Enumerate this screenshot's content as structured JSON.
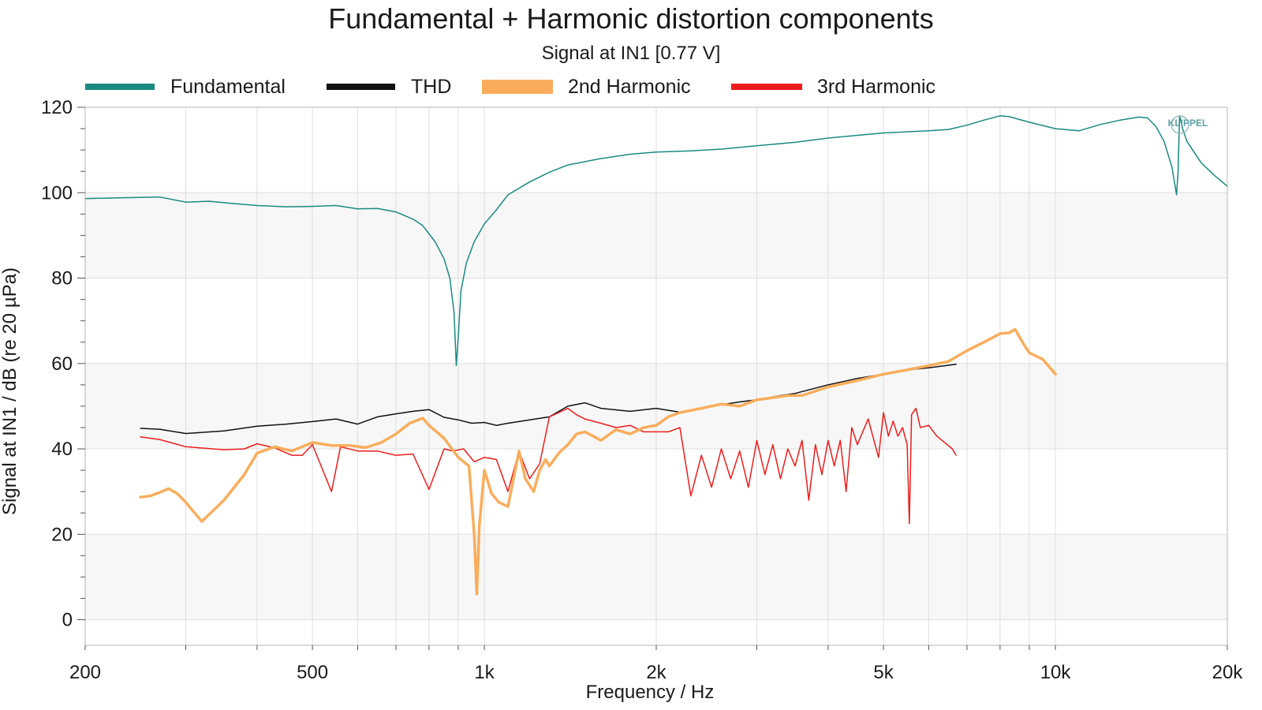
{
  "chart_data": {
    "type": "line",
    "title": "Fundamental + Harmonic distortion components",
    "subtitle": "Signal at IN1 [0.77 V]",
    "xlabel": "Frequency / Hz",
    "ylabel": "Signal at IN1 / dB (re 20 µPa)",
    "xscale": "log",
    "xlim": [
      200,
      20000
    ],
    "ylim": [
      -6,
      120
    ],
    "x_ticks": [
      {
        "value": 200,
        "label": "200"
      },
      {
        "value": 500,
        "label": "500"
      },
      {
        "value": 1000,
        "label": "1k"
      },
      {
        "value": 2000,
        "label": "2k"
      },
      {
        "value": 5000,
        "label": "5k"
      },
      {
        "value": 10000,
        "label": "10k"
      },
      {
        "value": 20000,
        "label": "20k"
      }
    ],
    "y_ticks": [
      0,
      20,
      40,
      60,
      80,
      100,
      120
    ],
    "grid": true,
    "legend_position": "top",
    "logo": "KLIPPEL",
    "series": [
      {
        "name": "Fundamental",
        "color": "#1a8a80",
        "width": 1.5,
        "x": [
          200,
          230,
          270,
          300,
          330,
          360,
          400,
          450,
          500,
          550,
          600,
          650,
          700,
          750,
          780,
          820,
          850,
          870,
          885,
          893,
          900,
          910,
          930,
          960,
          1000,
          1050,
          1100,
          1200,
          1300,
          1400,
          1600,
          1800,
          2000,
          2300,
          2600,
          3000,
          3500,
          4000,
          5000,
          6000,
          6500,
          7000,
          7500,
          8000,
          8300,
          9000,
          10000,
          11000,
          12000,
          13000,
          14000,
          14500,
          15000,
          15500,
          16000,
          16300,
          16400,
          16500,
          16700,
          17000,
          18000,
          19000,
          20000
        ],
        "y": [
          98.6,
          98.8,
          99.0,
          97.8,
          98.0,
          97.5,
          97.0,
          96.7,
          96.8,
          97.0,
          96.2,
          96.3,
          95.5,
          93.8,
          92.3,
          88.5,
          84.5,
          80.0,
          72.0,
          59.5,
          66.0,
          77.0,
          83.5,
          88.5,
          92.7,
          96.0,
          99.5,
          102.5,
          104.8,
          106.5,
          108.0,
          109.0,
          109.5,
          109.8,
          110.2,
          111.0,
          111.8,
          112.8,
          114.0,
          114.5,
          114.8,
          115.8,
          117.0,
          118.0,
          117.8,
          116.5,
          115.0,
          114.5,
          116.0,
          117.0,
          117.7,
          117.5,
          115.5,
          112.0,
          106.0,
          99.5,
          105.0,
          118.0,
          115.0,
          112.0,
          107.0,
          104.0,
          101.5
        ]
      },
      {
        "name": "THD",
        "color": "#111111",
        "width": 1.5,
        "x": [
          250,
          270,
          300,
          350,
          400,
          450,
          500,
          550,
          600,
          650,
          700,
          750,
          800,
          850,
          900,
          950,
          1000,
          1050,
          1100,
          1200,
          1300,
          1400,
          1500,
          1600,
          1800,
          2000,
          2200,
          2500,
          2800,
          3000,
          3300,
          3500,
          4000,
          4500,
          5000,
          5500,
          6000,
          6700
        ],
        "y": [
          44.8,
          44.6,
          43.6,
          44.2,
          45.3,
          45.8,
          46.4,
          47.0,
          45.8,
          47.5,
          48.2,
          48.8,
          49.2,
          47.4,
          46.8,
          46.0,
          46.2,
          45.5,
          46.0,
          46.8,
          47.5,
          50.0,
          50.8,
          49.5,
          48.8,
          49.5,
          48.6,
          50.0,
          51.0,
          51.5,
          52.5,
          53.0,
          55.0,
          56.5,
          57.5,
          58.5,
          59.0,
          59.8
        ]
      },
      {
        "name": "2nd Harmonic",
        "color": "#f9ad5c",
        "width": 3.5,
        "x": [
          250,
          260,
          270,
          280,
          290,
          300,
          320,
          350,
          380,
          400,
          430,
          460,
          500,
          540,
          580,
          620,
          660,
          700,
          740,
          780,
          800,
          850,
          900,
          940,
          960,
          970,
          980,
          1000,
          1030,
          1060,
          1100,
          1150,
          1180,
          1220,
          1250,
          1280,
          1300,
          1350,
          1400,
          1450,
          1500,
          1550,
          1600,
          1700,
          1800,
          1900,
          2000,
          2100,
          2200,
          2400,
          2600,
          2800,
          3000,
          3200,
          3400,
          3600,
          4000,
          4500,
          5000,
          5500,
          6000,
          6500,
          7000,
          7500,
          8000,
          8300,
          8500,
          8800,
          9000,
          9500,
          10000
        ],
        "y": [
          28.7,
          29.0,
          29.8,
          30.7,
          29.5,
          27.5,
          23.0,
          28.0,
          34.0,
          39.0,
          40.5,
          39.5,
          41.5,
          40.8,
          40.8,
          40.3,
          41.5,
          43.5,
          46.0,
          47.2,
          45.5,
          42.5,
          38.0,
          36.0,
          20.0,
          6.0,
          22.0,
          35.0,
          29.5,
          27.5,
          26.5,
          39.5,
          33.0,
          30.0,
          35.0,
          37.5,
          36.0,
          39.0,
          41.0,
          43.5,
          44.0,
          43.0,
          42.0,
          44.5,
          43.5,
          45.0,
          45.5,
          47.5,
          48.5,
          49.5,
          50.5,
          50.0,
          51.5,
          52.0,
          52.5,
          52.5,
          54.5,
          56.0,
          57.5,
          58.5,
          59.5,
          60.5,
          63.0,
          65.0,
          67.0,
          67.2,
          68.0,
          64.5,
          62.5,
          61.0,
          57.5
        ]
      },
      {
        "name": "3rd Harmonic",
        "color": "#ee1c1c",
        "width": 1.5,
        "x": [
          250,
          270,
          300,
          350,
          380,
          400,
          430,
          460,
          480,
          500,
          540,
          560,
          600,
          650,
          700,
          750,
          800,
          850,
          880,
          920,
          960,
          1000,
          1050,
          1100,
          1150,
          1200,
          1250,
          1300,
          1350,
          1400,
          1450,
          1500,
          1600,
          1700,
          1800,
          1900,
          2000,
          2100,
          2200,
          2300,
          2400,
          2500,
          2600,
          2700,
          2800,
          2900,
          3000,
          3100,
          3200,
          3300,
          3400,
          3500,
          3600,
          3700,
          3800,
          3900,
          4000,
          4100,
          4200,
          4300,
          4400,
          4500,
          4700,
          4900,
          5000,
          5100,
          5200,
          5300,
          5400,
          5500,
          5550,
          5600,
          5700,
          5800,
          6000,
          6200,
          6400,
          6600,
          6700
        ],
        "y": [
          42.8,
          42.2,
          40.5,
          39.8,
          40.0,
          41.2,
          40.2,
          38.5,
          38.5,
          41.0,
          30.0,
          40.5,
          39.5,
          39.5,
          38.5,
          38.8,
          30.5,
          40.0,
          39.5,
          40.0,
          37.0,
          38.0,
          37.5,
          30.0,
          39.5,
          33.0,
          36.5,
          47.5,
          48.5,
          49.5,
          48.0,
          47.0,
          46.0,
          45.0,
          45.5,
          44.0,
          44.0,
          44.0,
          45.0,
          29.0,
          38.5,
          31.0,
          40.0,
          33.0,
          39.5,
          31.0,
          42.0,
          34.0,
          41.0,
          33.0,
          40.0,
          36.0,
          42.0,
          28.0,
          41.0,
          34.0,
          42.0,
          36.0,
          42.0,
          30.0,
          45.0,
          41.0,
          47.0,
          38.0,
          48.5,
          43.0,
          46.5,
          43.0,
          45.0,
          41.0,
          22.5,
          48.0,
          49.5,
          45.0,
          45.5,
          43.0,
          41.5,
          40.0,
          38.5
        ]
      }
    ]
  }
}
